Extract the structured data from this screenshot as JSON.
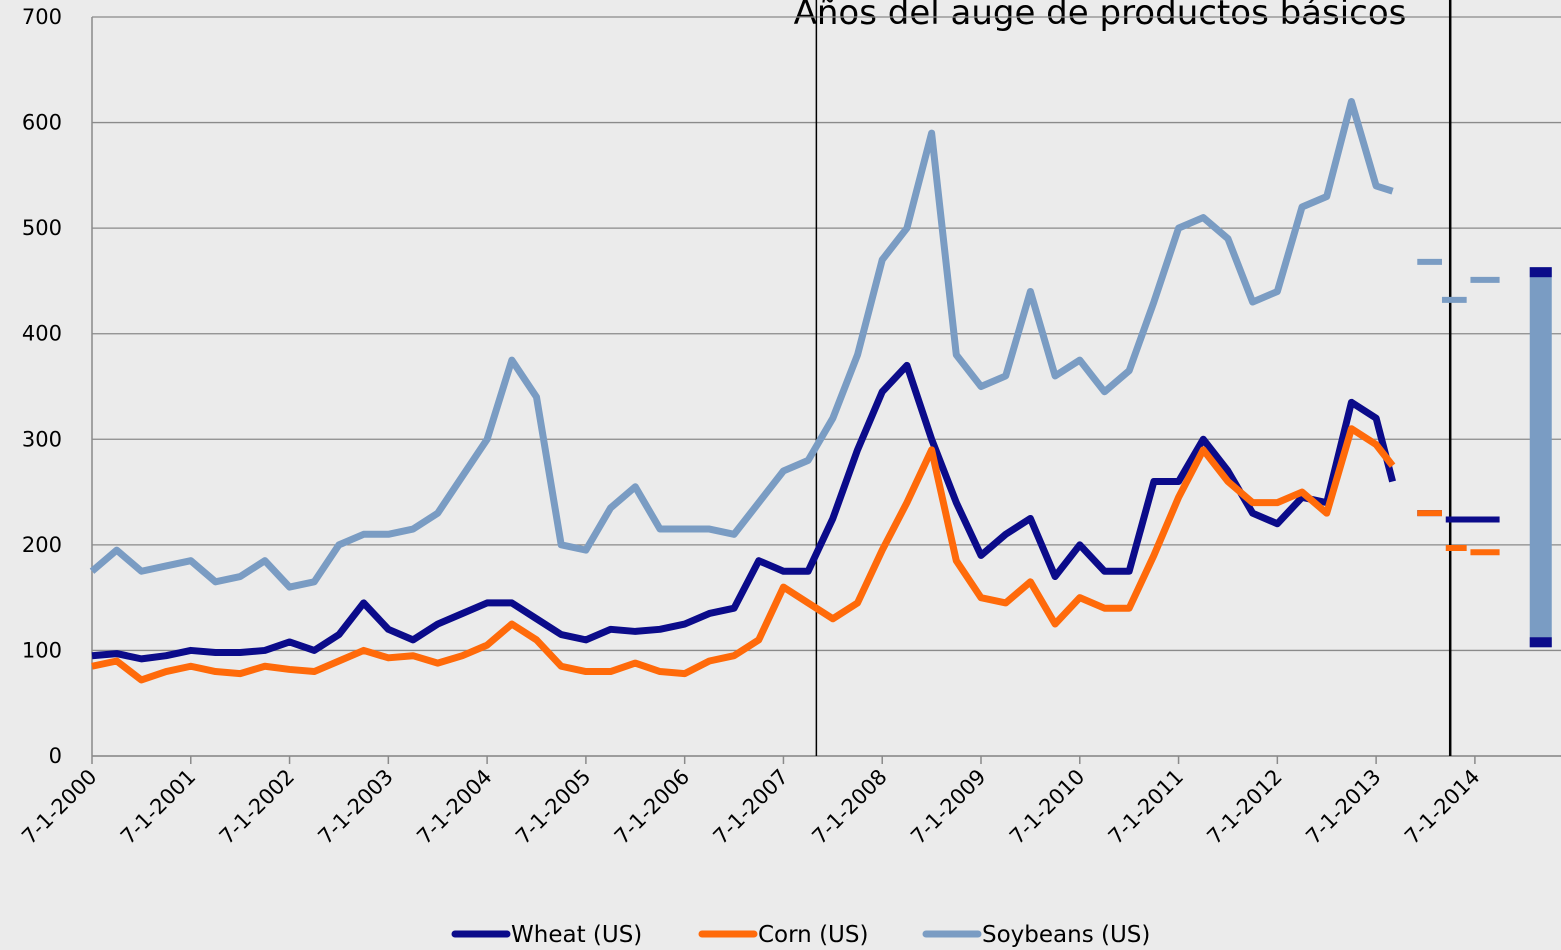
{
  "chart_data": {
    "type": "line",
    "annotation": "Años del auge de productos básicos",
    "annotation_lines": [
      "2007-11-01",
      "2014-04-01"
    ],
    "x": [
      "2000-07-01",
      "2000-10-01",
      "2001-01-01",
      "2001-04-01",
      "2001-07-01",
      "2001-10-01",
      "2002-01-01",
      "2002-04-01",
      "2002-07-01",
      "2002-10-01",
      "2003-01-01",
      "2003-04-01",
      "2003-07-01",
      "2003-10-01",
      "2004-01-01",
      "2004-04-01",
      "2004-07-01",
      "2004-10-01",
      "2005-01-01",
      "2005-04-01",
      "2005-07-01",
      "2005-10-01",
      "2006-01-01",
      "2006-04-01",
      "2006-07-01",
      "2006-10-01",
      "2007-01-01",
      "2007-04-01",
      "2007-07-01",
      "2007-10-01",
      "2008-01-01",
      "2008-04-01",
      "2008-07-01",
      "2008-10-01",
      "2009-01-01",
      "2009-04-01",
      "2009-07-01",
      "2009-10-01",
      "2010-01-01",
      "2010-04-01",
      "2010-07-01",
      "2010-10-01",
      "2011-01-01",
      "2011-04-01",
      "2011-07-01",
      "2011-10-01",
      "2012-01-01",
      "2012-04-01",
      "2012-07-01",
      "2012-10-01",
      "2013-01-01",
      "2013-04-01",
      "2013-07-01",
      "2013-09-01"
    ],
    "series": [
      {
        "name": "Wheat (US)",
        "color": "#0b0b8a",
        "values": [
          95,
          97,
          92,
          95,
          100,
          98,
          98,
          100,
          108,
          100,
          115,
          145,
          120,
          110,
          125,
          135,
          145,
          145,
          130,
          115,
          110,
          120,
          118,
          120,
          125,
          135,
          140,
          185,
          175,
          175,
          225,
          290,
          345,
          370,
          300,
          240,
          190,
          210,
          225,
          170,
          200,
          175,
          175,
          260,
          260,
          300,
          270,
          230,
          220,
          245,
          240,
          335,
          320,
          260
        ],
        "forecast": [
          {
            "x": [
              "2013-12-01",
              "2014-03-01"
            ],
            "value": 230
          },
          {
            "x": [
              "2014-03-15",
              "2014-10-01"
            ],
            "value": 224
          }
        ]
      },
      {
        "name": "Corn (US)",
        "color": "#ff6a0a",
        "values": [
          85,
          90,
          72,
          80,
          85,
          80,
          78,
          85,
          82,
          80,
          90,
          100,
          93,
          95,
          88,
          95,
          105,
          125,
          110,
          85,
          80,
          80,
          88,
          80,
          78,
          90,
          95,
          110,
          160,
          145,
          130,
          145,
          195,
          240,
          290,
          185,
          150,
          145,
          165,
          125,
          150,
          140,
          140,
          190,
          245,
          290,
          260,
          240,
          240,
          250,
          230,
          310,
          295,
          275
        ],
        "forecast": [
          {
            "x": [
              "2013-12-01",
              "2014-03-01"
            ],
            "value": 230
          },
          {
            "x": [
              "2014-03-15",
              "2014-06-01"
            ],
            "value": 197
          },
          {
            "x": [
              "2014-06-15",
              "2014-10-01"
            ],
            "value": 193
          }
        ]
      },
      {
        "name": "Soybeans (US)",
        "color": "#7a9cc3",
        "values": [
          175,
          195,
          175,
          180,
          185,
          165,
          170,
          185,
          160,
          165,
          200,
          210,
          210,
          215,
          230,
          265,
          300,
          375,
          340,
          200,
          195,
          235,
          255,
          215,
          215,
          215,
          210,
          240,
          270,
          280,
          320,
          380,
          470,
          500,
          590,
          380,
          350,
          360,
          440,
          360,
          375,
          345,
          365,
          430,
          500,
          510,
          490,
          430,
          440,
          520,
          530,
          620,
          540,
          535
        ],
        "forecast": [
          {
            "x": [
              "2013-12-01",
              "2014-03-01"
            ],
            "value": 468
          },
          {
            "x": [
              "2014-03-01",
              "2014-06-01"
            ],
            "value": 432
          },
          {
            "x": [
              "2014-06-15",
              "2014-10-01"
            ],
            "value": 451
          }
        ]
      }
    ],
    "range_bar": {
      "x": "2015-03-01",
      "low": 103,
      "high": 463,
      "color": "#7a9cc3",
      "cap_color": "#0b0b8a"
    },
    "xlim": [
      "2000-07-01",
      "2015-05-15"
    ],
    "xticks": [
      {
        "value": "2000-07-01",
        "label": "7-1-2000"
      },
      {
        "value": "2001-07-01",
        "label": "7-1-2001"
      },
      {
        "value": "2002-07-01",
        "label": "7-1-2002"
      },
      {
        "value": "2003-07-01",
        "label": "7-1-2003"
      },
      {
        "value": "2004-07-01",
        "label": "7-1-2004"
      },
      {
        "value": "2005-07-01",
        "label": "7-1-2005"
      },
      {
        "value": "2006-07-01",
        "label": "7-1-2006"
      },
      {
        "value": "2007-07-01",
        "label": "7-1-2007"
      },
      {
        "value": "2008-07-01",
        "label": "7-1-2008"
      },
      {
        "value": "2009-07-01",
        "label": "7-1-2009"
      },
      {
        "value": "2010-07-01",
        "label": "7-1-2010"
      },
      {
        "value": "2011-07-01",
        "label": "7-1-2011"
      },
      {
        "value": "2012-07-01",
        "label": "7-1-2012"
      },
      {
        "value": "2013-07-01",
        "label": "7-1-2013"
      },
      {
        "value": "2014-07-01",
        "label": "7-1-2014"
      }
    ],
    "ylim": [
      0,
      700
    ],
    "yticks": [
      0,
      100,
      200,
      300,
      400,
      500,
      600,
      700
    ],
    "grid": true,
    "legend": "bottom"
  }
}
